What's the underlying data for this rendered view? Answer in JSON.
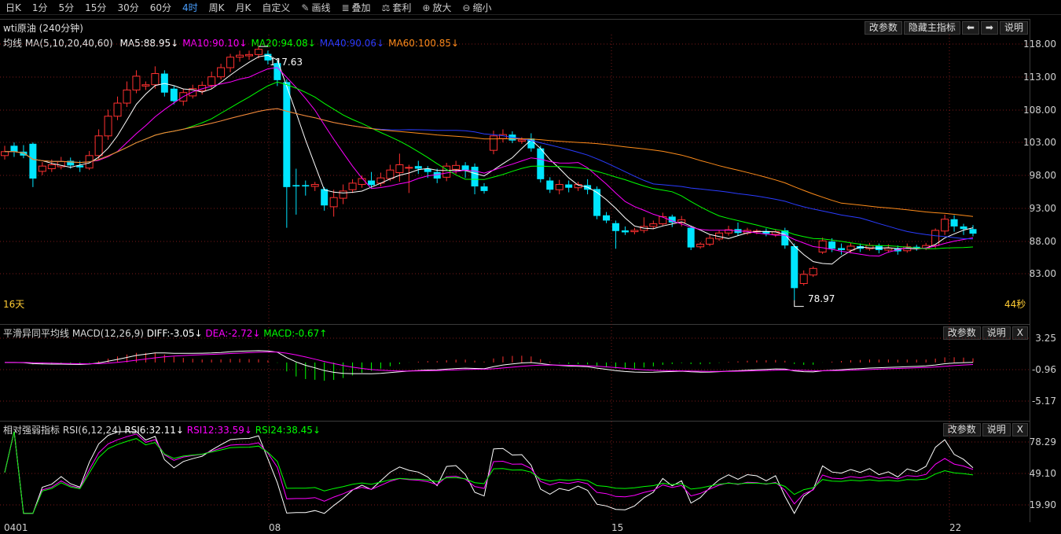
{
  "toolbar": {
    "items": [
      "日K",
      "1分",
      "5分",
      "15分",
      "30分",
      "60分",
      "4时",
      "周K",
      "月K",
      "自定义"
    ],
    "tools": [
      {
        "icon": "pencil-icon",
        "glyph": "✎",
        "label": "画线"
      },
      {
        "icon": "stack-icon",
        "glyph": "≣",
        "label": "叠加"
      },
      {
        "icon": "arbitrage-icon",
        "glyph": "⚖",
        "label": "套利"
      },
      {
        "icon": "zoom-in-icon",
        "glyph": "⊕",
        "label": "放大"
      },
      {
        "icon": "zoom-out-icon",
        "glyph": "⊖",
        "label": "缩小"
      }
    ],
    "active": "4时"
  },
  "main": {
    "symbol": "wti原油 (240分钟)",
    "buttons": [
      "改参数",
      "隐藏主指标",
      "⬅",
      "➡",
      "说明"
    ],
    "ma_label": "均线 MA(5,10,20,40,60)",
    "ma": [
      {
        "text": "MA5:88.95↓",
        "color": "#ffffff"
      },
      {
        "text": "MA10:90.10↓",
        "color": "#ff00ff"
      },
      {
        "text": "MA20:94.08↓",
        "color": "#00ff00"
      },
      {
        "text": "MA40:90.06↓",
        "color": "#2a3cff"
      },
      {
        "text": "MA60:100.85↓",
        "color": "#ff8c1a"
      }
    ],
    "yticks": [
      "118.00",
      "113.00",
      "108.00",
      "103.00",
      "98.00",
      "93.00",
      "88.00",
      "83.00"
    ],
    "high_label": "117.63",
    "low_label": "78.97",
    "left_note": "16天",
    "right_note": "44秒"
  },
  "macd": {
    "title": "平滑异同平均线 MACD(12,26,9)",
    "diff": {
      "text": "DIFF:-3.05↓",
      "color": "#ffffff"
    },
    "dea": {
      "text": "DEA:-2.72↓",
      "color": "#ff00ff"
    },
    "macd": {
      "text": "MACD:-0.67↑",
      "color": "#00ff00"
    },
    "buttons": [
      "改参数",
      "说明",
      "X"
    ],
    "yticks": [
      "3.25",
      "-0.96",
      "-5.17"
    ]
  },
  "rsi": {
    "title": "相对强弱指标 RSI(6,12,24)",
    "rsi6": {
      "text": "RSI6:32.11↓",
      "color": "#ffffff"
    },
    "rsi12": {
      "text": "RSI12:33.59↓",
      "color": "#ff00ff"
    },
    "rsi24": {
      "text": "RSI24:38.45↓",
      "color": "#00ff00"
    },
    "buttons": [
      "改参数",
      "说明",
      "X"
    ],
    "yticks": [
      "78.29",
      "49.10",
      "19.90"
    ]
  },
  "xaxis": [
    "0401",
    "08",
    "15",
    "22"
  ],
  "colors": {
    "up": "#ff3030",
    "down": "#00e5ff",
    "grid": "#7a1a1a"
  }
}
